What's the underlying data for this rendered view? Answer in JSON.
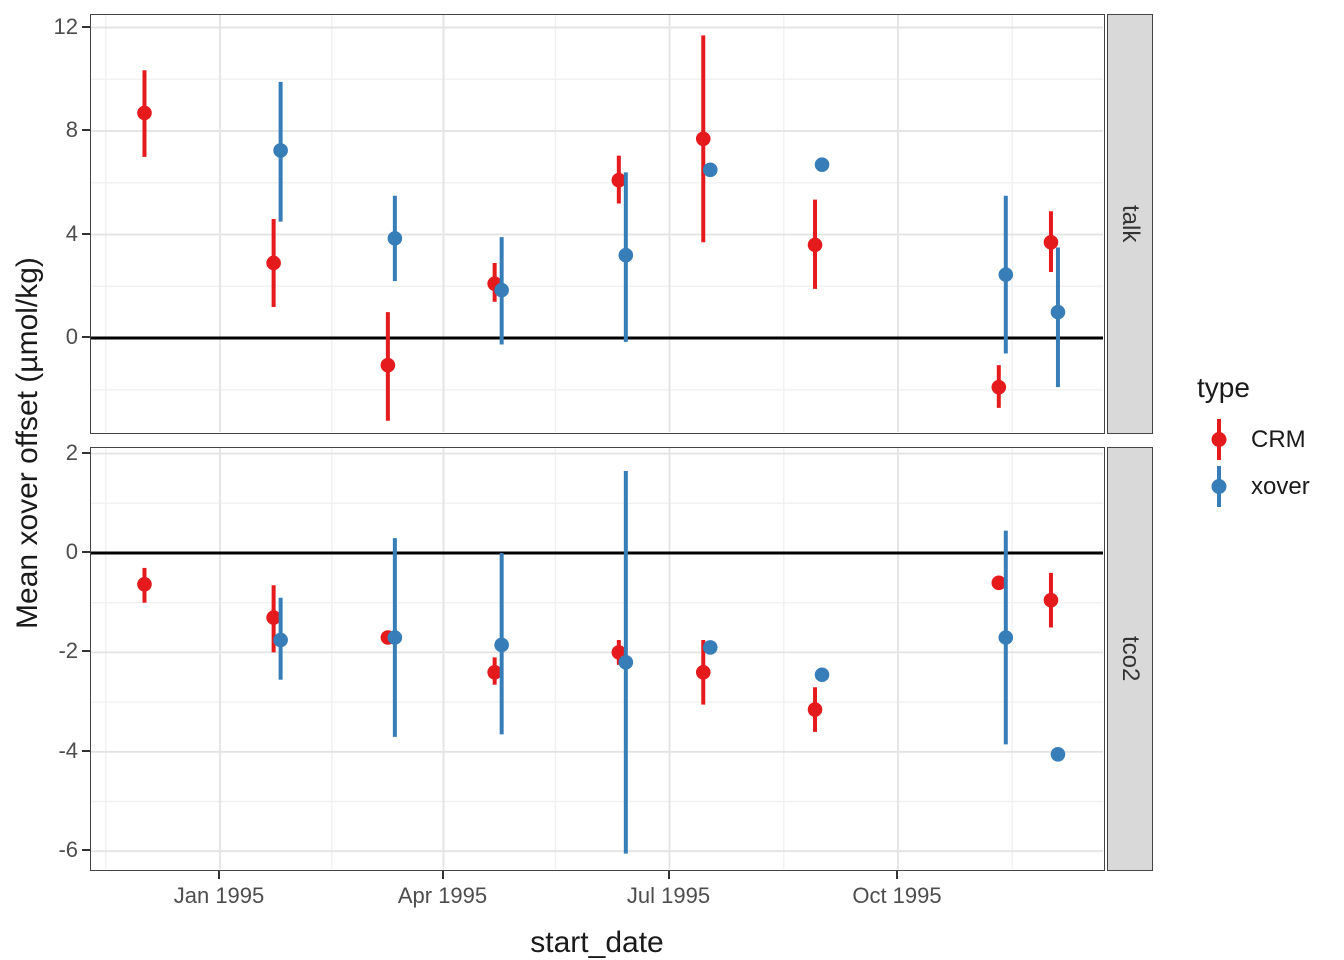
{
  "colors": {
    "crm": "#E41A1C",
    "xover": "#377EB8",
    "grid_major": "#E3E3E3",
    "grid_minor": "#F1F1F1",
    "zero_line": "#000000",
    "panel_border": "#444444",
    "strip_fill": "#D9D9D9",
    "axis_text": "#4D4D4D",
    "title_text": "#1A1A1A"
  },
  "chart_data": {
    "type": "scatter",
    "subtype": "pointrange-errorbar-faceted",
    "title": "",
    "xlabel": "start_date",
    "ylabel": "Mean xover offset (µmol/kg)",
    "legend": {
      "title": "type",
      "position": "right",
      "entries": [
        {
          "label": "CRM",
          "color": "#E41A1C"
        },
        {
          "label": "xover",
          "color": "#377EB8"
        }
      ]
    },
    "x_axis": {
      "domain": [
        "1994-11-09",
        "1995-12-23"
      ],
      "ticks": [
        {
          "date": "1995-01-01",
          "label": "Jan 1995"
        },
        {
          "date": "1995-04-01",
          "label": "Apr 1995"
        },
        {
          "date": "1995-07-01",
          "label": "Jul 1995"
        },
        {
          "date": "1995-10-01",
          "label": "Oct 1995"
        }
      ],
      "minor_breaks": [
        "1994-11-16",
        "1995-02-15",
        "1995-05-16",
        "1995-08-16",
        "1995-11-16"
      ]
    },
    "facets": [
      {
        "name": "talk",
        "ylim": [
          -3.7,
          12.45
        ],
        "major_ticks": [
          0,
          4,
          8,
          12
        ],
        "tick_labels": [
          "0",
          "4",
          "8",
          "12"
        ],
        "minor_ticks": [
          -2,
          2,
          6,
          10
        ],
        "zero_reference_line": 0,
        "points": [
          {
            "type": "CRM",
            "date": "1994-12-03",
            "y": 8.7,
            "ymin": 7.0,
            "ymax": 10.35
          },
          {
            "type": "CRM",
            "date": "1995-01-24",
            "y": 2.9,
            "ymin": 1.2,
            "ymax": 4.6
          },
          {
            "type": "CRM",
            "date": "1995-03-11",
            "y": -1.05,
            "ymin": -3.2,
            "ymax": 1.0
          },
          {
            "type": "CRM",
            "date": "1995-04-23",
            "y": 2.1,
            "ymin": 1.4,
            "ymax": 2.9
          },
          {
            "type": "CRM",
            "date": "1995-06-12",
            "y": 6.1,
            "ymin": 5.2,
            "ymax": 7.05
          },
          {
            "type": "CRM",
            "date": "1995-07-16",
            "y": 7.7,
            "ymin": 3.7,
            "ymax": 11.7
          },
          {
            "type": "CRM",
            "date": "1995-08-30",
            "y": 3.6,
            "ymin": 1.9,
            "ymax": 5.35
          },
          {
            "type": "CRM",
            "date": "1995-11-12",
            "y": -1.9,
            "ymin": -2.7,
            "ymax": -1.05
          },
          {
            "type": "CRM",
            "date": "1995-12-03",
            "y": 3.7,
            "ymin": 2.55,
            "ymax": 4.9
          },
          {
            "type": "xover",
            "date": "1995-01-24",
            "y": 7.25,
            "ymin": 4.5,
            "ymax": 9.9
          },
          {
            "type": "xover",
            "date": "1995-03-11",
            "y": 3.85,
            "ymin": 2.2,
            "ymax": 5.5
          },
          {
            "type": "xover",
            "date": "1995-04-23",
            "y": 1.85,
            "ymin": -0.25,
            "ymax": 3.9
          },
          {
            "type": "xover",
            "date": "1995-06-12",
            "y": 3.2,
            "ymin": -0.15,
            "ymax": 6.4
          },
          {
            "type": "xover",
            "date": "1995-07-16",
            "y": 6.5,
            "ymin": null,
            "ymax": null
          },
          {
            "type": "xover",
            "date": "1995-08-30",
            "y": 6.7,
            "ymin": null,
            "ymax": null
          },
          {
            "type": "xover",
            "date": "1995-11-12",
            "y": 2.45,
            "ymin": -0.6,
            "ymax": 5.5
          },
          {
            "type": "xover",
            "date": "1995-12-03",
            "y": 1.0,
            "ymin": -1.9,
            "ymax": 3.5
          }
        ]
      },
      {
        "name": "tco2",
        "ylim": [
          -6.42,
          2.11
        ],
        "major_ticks": [
          2,
          0,
          -2,
          -4,
          -6
        ],
        "tick_labels": [
          "2",
          "0",
          "-2",
          "-4",
          "-6"
        ],
        "minor_ticks": [
          1,
          -1,
          -3,
          -5
        ],
        "zero_reference_line": 0,
        "points": [
          {
            "type": "CRM",
            "date": "1994-12-03",
            "y": -0.63,
            "ymin": -1.0,
            "ymax": -0.3
          },
          {
            "type": "CRM",
            "date": "1995-01-24",
            "y": -1.3,
            "ymin": -2.0,
            "ymax": -0.65
          },
          {
            "type": "CRM",
            "date": "1995-03-11",
            "y": -1.7,
            "ymin": null,
            "ymax": null
          },
          {
            "type": "CRM",
            "date": "1995-04-23",
            "y": -2.4,
            "ymin": -2.65,
            "ymax": -2.1
          },
          {
            "type": "CRM",
            "date": "1995-06-12",
            "y": -2.0,
            "ymin": -2.25,
            "ymax": -1.75
          },
          {
            "type": "CRM",
            "date": "1995-07-16",
            "y": -2.4,
            "ymin": -3.05,
            "ymax": -1.75
          },
          {
            "type": "CRM",
            "date": "1995-08-30",
            "y": -3.15,
            "ymin": -3.6,
            "ymax": -2.7
          },
          {
            "type": "CRM",
            "date": "1995-11-12",
            "y": -0.6,
            "ymin": null,
            "ymax": null
          },
          {
            "type": "CRM",
            "date": "1995-12-03",
            "y": -0.95,
            "ymin": -1.5,
            "ymax": -0.4
          },
          {
            "type": "xover",
            "date": "1995-01-24",
            "y": -1.75,
            "ymin": -2.55,
            "ymax": -0.9
          },
          {
            "type": "xover",
            "date": "1995-03-11",
            "y": -1.7,
            "ymin": -3.7,
            "ymax": 0.3
          },
          {
            "type": "xover",
            "date": "1995-04-23",
            "y": -1.85,
            "ymin": -3.65,
            "ymax": 0.0
          },
          {
            "type": "xover",
            "date": "1995-06-12",
            "y": -2.2,
            "ymin": -6.05,
            "ymax": 1.65
          },
          {
            "type": "xover",
            "date": "1995-07-16",
            "y": -1.9,
            "ymin": null,
            "ymax": null
          },
          {
            "type": "xover",
            "date": "1995-08-30",
            "y": -2.45,
            "ymin": null,
            "ymax": null
          },
          {
            "type": "xover",
            "date": "1995-11-12",
            "y": -1.7,
            "ymin": -3.85,
            "ymax": 0.45
          },
          {
            "type": "xover",
            "date": "1995-12-03",
            "y": -4.05,
            "ymin": null,
            "ymax": null
          }
        ]
      }
    ]
  }
}
